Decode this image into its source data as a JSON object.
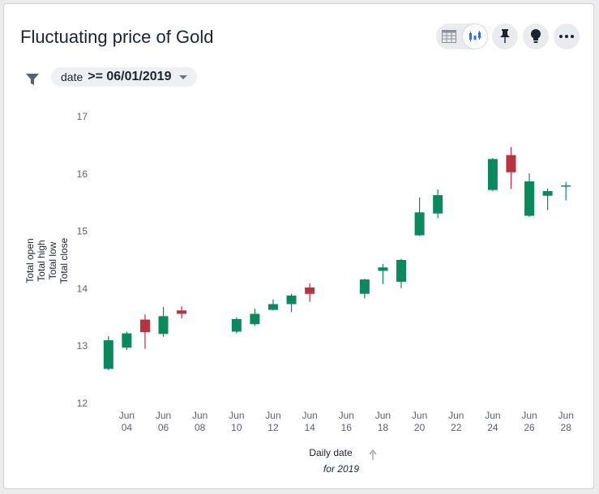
{
  "header": {
    "title": "Fluctuating price of Gold"
  },
  "toolbar": {
    "toggle_left_icon": "table-icon",
    "toggle_right_icon": "chart-icon",
    "pin_icon": "pin-icon",
    "insight_icon": "lightbulb-icon",
    "more_icon": "more-icon"
  },
  "filter": {
    "icon": "filter-icon",
    "field": "date",
    "condition": ">= 06/01/2019"
  },
  "colors": {
    "up": "#0a8a5c",
    "down": "#b8323f"
  },
  "chart_data": {
    "type": "candlestick",
    "title": "Fluctuating price of Gold",
    "xlabel": "Daily date",
    "xlabel_sub": "for 2019",
    "ylabels": [
      "Total open",
      "Total high",
      "Total low",
      "Total close"
    ],
    "ylim": [
      12,
      17
    ],
    "yticks": [
      12,
      13,
      14,
      15,
      16,
      17
    ],
    "xlim": [
      2.3,
      28.7
    ],
    "xticks": [
      {
        "day": 4,
        "month": "Jun",
        "num": "04"
      },
      {
        "day": 6,
        "month": "Jun",
        "num": "06"
      },
      {
        "day": 8,
        "month": "Jun",
        "num": "08"
      },
      {
        "day": 10,
        "month": "Jun",
        "num": "10"
      },
      {
        "day": 12,
        "month": "Jun",
        "num": "12"
      },
      {
        "day": 14,
        "month": "Jun",
        "num": "14"
      },
      {
        "day": 16,
        "month": "Jun",
        "num": "16"
      },
      {
        "day": 18,
        "month": "Jun",
        "num": "18"
      },
      {
        "day": 20,
        "month": "Jun",
        "num": "20"
      },
      {
        "day": 22,
        "month": "Jun",
        "num": "22"
      },
      {
        "day": 24,
        "month": "Jun",
        "num": "24"
      },
      {
        "day": 26,
        "month": "Jun",
        "num": "26"
      },
      {
        "day": 28,
        "month": "Jun",
        "num": "28"
      }
    ],
    "candles": [
      {
        "day": 3,
        "open": 12.6,
        "high": 13.17,
        "low": 12.58,
        "close": 13.1
      },
      {
        "day": 4,
        "open": 12.97,
        "high": 13.25,
        "low": 12.93,
        "close": 13.22
      },
      {
        "day": 5,
        "open": 13.46,
        "high": 13.55,
        "low": 12.95,
        "close": 13.24
      },
      {
        "day": 6,
        "open": 13.21,
        "high": 13.68,
        "low": 13.16,
        "close": 13.52
      },
      {
        "day": 7,
        "open": 13.62,
        "high": 13.69,
        "low": 13.48,
        "close": 13.56
      },
      {
        "day": 10,
        "open": 13.25,
        "high": 13.5,
        "low": 13.22,
        "close": 13.47
      },
      {
        "day": 11,
        "open": 13.38,
        "high": 13.65,
        "low": 13.35,
        "close": 13.56
      },
      {
        "day": 12,
        "open": 13.63,
        "high": 13.81,
        "low": 13.62,
        "close": 13.73
      },
      {
        "day": 13,
        "open": 13.73,
        "high": 13.91,
        "low": 13.59,
        "close": 13.88
      },
      {
        "day": 14,
        "open": 14.02,
        "high": 14.09,
        "low": 13.77,
        "close": 13.91
      },
      {
        "day": 17,
        "open": 13.91,
        "high": 14.17,
        "low": 13.83,
        "close": 14.16
      },
      {
        "day": 18,
        "open": 14.31,
        "high": 14.43,
        "low": 14.08,
        "close": 14.37
      },
      {
        "day": 19,
        "open": 14.12,
        "high": 14.52,
        "low": 14.01,
        "close": 14.5
      },
      {
        "day": 20,
        "open": 14.93,
        "high": 15.59,
        "low": 14.92,
        "close": 15.33
      },
      {
        "day": 21,
        "open": 15.31,
        "high": 15.73,
        "low": 15.23,
        "close": 15.63
      },
      {
        "day": 24,
        "open": 15.72,
        "high": 16.28,
        "low": 15.7,
        "close": 16.26
      },
      {
        "day": 25,
        "open": 16.33,
        "high": 16.47,
        "low": 15.74,
        "close": 16.03
      },
      {
        "day": 26,
        "open": 15.27,
        "high": 16.01,
        "low": 15.25,
        "close": 15.87
      },
      {
        "day": 27,
        "open": 15.62,
        "high": 15.75,
        "low": 15.37,
        "close": 15.7
      },
      {
        "day": 28,
        "open": 15.79,
        "high": 15.86,
        "low": 15.54,
        "close": 15.8
      }
    ]
  }
}
